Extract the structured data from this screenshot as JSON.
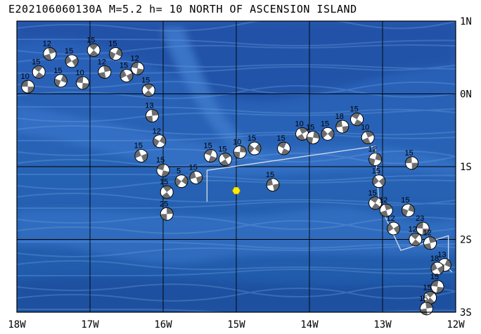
{
  "title": "E202106060130A M=5.2 h= 10 NORTH OF ASCENSION ISLAND",
  "map": {
    "lon_range": [
      -18,
      -12
    ],
    "lat_range": [
      -3,
      1
    ],
    "lon_labels": [
      "18W",
      "17W",
      "16W",
      "15W",
      "14W",
      "13W",
      "12W"
    ],
    "lat_labels": [
      "1N",
      "0N",
      "1S",
      "2S",
      "3S"
    ],
    "colors": {
      "ocean_deep": "#1e53a8",
      "ocean_mid": "#2f6ac0",
      "ridge": "#5a8fd8",
      "epicenter": "#ffee00",
      "box": "#d8dde8"
    },
    "epicenter": {
      "lon": -15.0,
      "lat": -1.33
    },
    "focal_mechanisms": [
      {
        "lon": -17.85,
        "lat": 0.1,
        "depth": "10"
      },
      {
        "lon": -17.7,
        "lat": 0.3,
        "depth": "15"
      },
      {
        "lon": -17.55,
        "lat": 0.55,
        "depth": "12"
      },
      {
        "lon": -17.4,
        "lat": 0.18,
        "depth": "15"
      },
      {
        "lon": -17.25,
        "lat": 0.45,
        "depth": "15"
      },
      {
        "lon": -17.1,
        "lat": 0.15,
        "depth": "10"
      },
      {
        "lon": -16.95,
        "lat": 0.6,
        "depth": "15"
      },
      {
        "lon": -16.8,
        "lat": 0.3,
        "depth": "12"
      },
      {
        "lon": -16.65,
        "lat": 0.55,
        "depth": "15"
      },
      {
        "lon": -16.5,
        "lat": 0.25,
        "depth": "15"
      },
      {
        "lon": -16.35,
        "lat": 0.35,
        "depth": "12"
      },
      {
        "lon": -16.2,
        "lat": 0.05,
        "depth": "15"
      },
      {
        "lon": -16.15,
        "lat": -0.3,
        "depth": "13"
      },
      {
        "lon": -16.05,
        "lat": -0.65,
        "depth": "12"
      },
      {
        "lon": -16.3,
        "lat": -0.85,
        "depth": "15"
      },
      {
        "lon": -16.0,
        "lat": -1.05,
        "depth": "15"
      },
      {
        "lon": -15.95,
        "lat": -1.35,
        "depth": "15"
      },
      {
        "lon": -15.95,
        "lat": -1.65,
        "depth": "25"
      },
      {
        "lon": -15.75,
        "lat": -1.2,
        "depth": "5"
      },
      {
        "lon": -15.55,
        "lat": -1.15,
        "depth": "15"
      },
      {
        "lon": -15.35,
        "lat": -0.85,
        "depth": "15"
      },
      {
        "lon": -15.15,
        "lat": -0.9,
        "depth": "15"
      },
      {
        "lon": -14.95,
        "lat": -0.8,
        "depth": "10"
      },
      {
        "lon": -14.75,
        "lat": -0.75,
        "depth": "15"
      },
      {
        "lon": -14.5,
        "lat": -1.25,
        "depth": "15"
      },
      {
        "lon": -14.35,
        "lat": -0.75,
        "depth": "15"
      },
      {
        "lon": -14.1,
        "lat": -0.55,
        "depth": "10"
      },
      {
        "lon": -13.95,
        "lat": -0.6,
        "depth": "15"
      },
      {
        "lon": -13.75,
        "lat": -0.55,
        "depth": "15"
      },
      {
        "lon": -13.55,
        "lat": -0.45,
        "depth": "18"
      },
      {
        "lon": -13.35,
        "lat": -0.35,
        "depth": "15"
      },
      {
        "lon": -13.2,
        "lat": -0.6,
        "depth": "10"
      },
      {
        "lon": -13.1,
        "lat": -0.9,
        "depth": "12"
      },
      {
        "lon": -13.05,
        "lat": -1.2,
        "depth": "15"
      },
      {
        "lon": -12.6,
        "lat": -0.95,
        "depth": "15"
      },
      {
        "lon": -13.1,
        "lat": -1.5,
        "depth": "15"
      },
      {
        "lon": -12.95,
        "lat": -1.6,
        "depth": "12"
      },
      {
        "lon": -12.65,
        "lat": -1.6,
        "depth": "15"
      },
      {
        "lon": -12.85,
        "lat": -1.85,
        "depth": "12"
      },
      {
        "lon": -12.45,
        "lat": -1.85,
        "depth": "23"
      },
      {
        "lon": -12.55,
        "lat": -2.0,
        "depth": "12"
      },
      {
        "lon": -12.35,
        "lat": -2.05,
        "depth": "12"
      },
      {
        "lon": -12.15,
        "lat": -2.35,
        "depth": "13"
      },
      {
        "lon": -12.25,
        "lat": -2.4,
        "depth": "18"
      },
      {
        "lon": -12.25,
        "lat": -2.65,
        "depth": "15"
      },
      {
        "lon": -12.35,
        "lat": -2.8,
        "depth": "15"
      },
      {
        "lon": -12.4,
        "lat": -2.95,
        "depth": "15"
      }
    ],
    "box_outline_lonlat": [
      [
        -15.4,
        -1.48
      ],
      [
        -15.4,
        -1.05
      ],
      [
        -13.1,
        -0.72
      ],
      [
        -13.05,
        -1.5
      ],
      [
        -12.75,
        -2.15
      ],
      [
        -12.1,
        -1.95
      ],
      [
        -12.1,
        -2.4
      ],
      [
        -12.05,
        -2.45
      ]
    ]
  }
}
